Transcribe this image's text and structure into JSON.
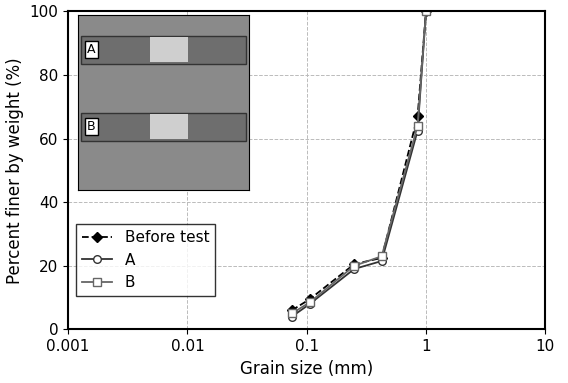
{
  "chart_data": {
    "type": "line",
    "x_label": "Grain size (mm)",
    "y_label": "Percent finer by weight (%)",
    "log": "x",
    "grid": true,
    "legend": "lower left",
    "xlim": [
      0.001,
      10
    ],
    "xticks": [
      0.001,
      0.01,
      0.1,
      1,
      10
    ],
    "ylim": [
      0,
      100
    ],
    "yticks": [
      0,
      20,
      40,
      60,
      80,
      100
    ],
    "x": [
      0.075,
      0.106,
      0.25,
      0.425,
      0.85,
      1.0
    ],
    "series": [
      {
        "name": "Before test",
        "color": "#000000",
        "marker": "diamond",
        "line_style": "dashed",
        "values": [
          6,
          9.5,
          20.5,
          22.5,
          67,
          100
        ]
      },
      {
        "name": "A",
        "color": "#333333",
        "marker": "circle",
        "line_style": "solid",
        "values": [
          4,
          8,
          19,
          21.5,
          62.5,
          100
        ]
      },
      {
        "name": "B",
        "color": "#666666",
        "marker": "square",
        "line_style": "solid",
        "values": [
          5,
          8.5,
          20,
          23,
          64,
          100
        ]
      }
    ]
  }
}
